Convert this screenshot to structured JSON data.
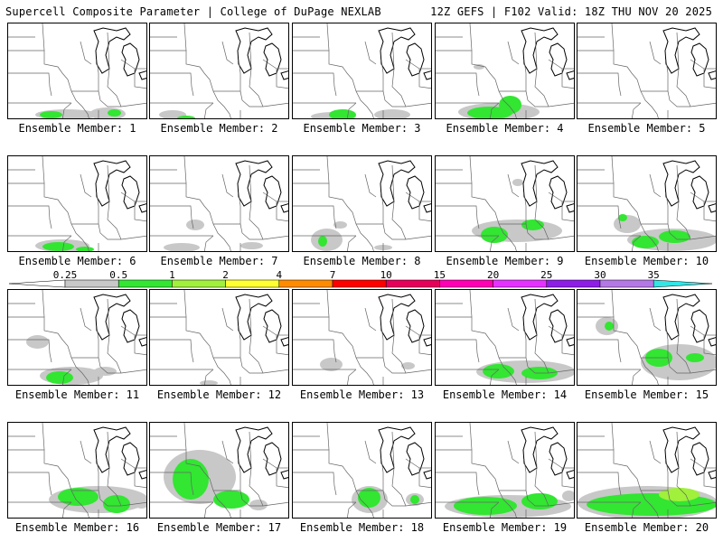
{
  "header": {
    "title": "Supercell Composite Parameter | College of DuPage NEXLAB",
    "run_info": "12Z GEFS | F102 Valid: 18Z THU NOV 20 2025"
  },
  "colorbar": {
    "labels": [
      "0.25",
      "0.5",
      "1",
      "2",
      "4",
      "7",
      "10",
      "15",
      "20",
      "25",
      "30",
      "35"
    ],
    "colors": [
      "#ffffff",
      "#c8c8c8",
      "#32e632",
      "#a0f03c",
      "#ffff32",
      "#ff8c00",
      "#ff0000",
      "#e6005a",
      "#ff00b4",
      "#e632ff",
      "#8c1ee6",
      "#b478e6",
      "#32e6e6"
    ]
  },
  "members": [
    {
      "label": "Ensemble Member: 1"
    },
    {
      "label": "Ensemble Member: 2"
    },
    {
      "label": "Ensemble Member: 3"
    },
    {
      "label": "Ensemble Member: 4"
    },
    {
      "label": "Ensemble Member: 5"
    },
    {
      "label": "Ensemble Member: 6"
    },
    {
      "label": "Ensemble Member: 7"
    },
    {
      "label": "Ensemble Member: 8"
    },
    {
      "label": "Ensemble Member: 9"
    },
    {
      "label": "Ensemble Member: 10"
    },
    {
      "label": "Ensemble Member: 11"
    },
    {
      "label": "Ensemble Member: 12"
    },
    {
      "label": "Ensemble Member: 13"
    },
    {
      "label": "Ensemble Member: 14"
    },
    {
      "label": "Ensemble Member: 15"
    },
    {
      "label": "Ensemble Member: 16"
    },
    {
      "label": "Ensemble Member: 17"
    },
    {
      "label": "Ensemble Member: 18"
    },
    {
      "label": "Ensemble Member: 19"
    },
    {
      "label": "Ensemble Member: 20"
    }
  ]
}
